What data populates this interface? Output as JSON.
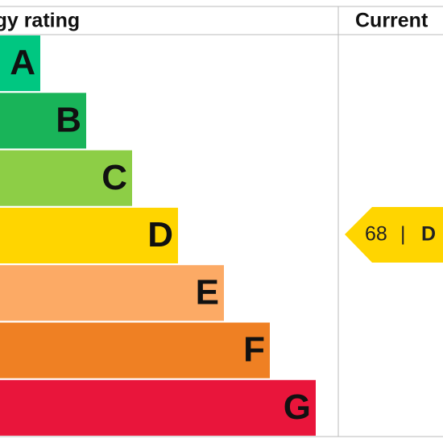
{
  "header": {
    "rating_title": "Energy rating",
    "current_title": "Current"
  },
  "bands": [
    {
      "letter": "A",
      "color": "#00c781"
    },
    {
      "letter": "B",
      "color": "#19b459"
    },
    {
      "letter": "C",
      "color": "#8dce46"
    },
    {
      "letter": "D",
      "color": "#ffd500"
    },
    {
      "letter": "E",
      "color": "#fcaa65"
    },
    {
      "letter": "F",
      "color": "#ef8023"
    },
    {
      "letter": "G",
      "color": "#e9153b"
    }
  ],
  "current": {
    "value": 68,
    "separator": "|",
    "letter": "D",
    "color": "#ffd500"
  }
}
